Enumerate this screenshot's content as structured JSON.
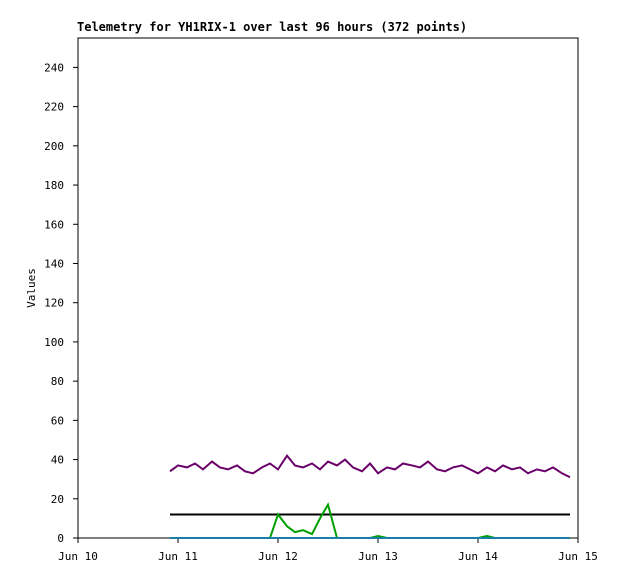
{
  "chart_data": {
    "type": "line",
    "title": "Telemetry for YH1RIX-1 over last 96 hours (372 points)",
    "y_label": "Values",
    "x": [
      10.92,
      11.0,
      11.09,
      11.17,
      11.25,
      11.34,
      11.42,
      11.5,
      11.59,
      11.67,
      11.75,
      11.84,
      11.92,
      12.0,
      12.09,
      12.17,
      12.25,
      12.34,
      12.42,
      12.5,
      12.59,
      12.67,
      12.75,
      12.84,
      12.92,
      13.0,
      13.09,
      13.17,
      13.25,
      13.34,
      13.42,
      13.5,
      13.59,
      13.67,
      13.75,
      13.84,
      13.92,
      14.0,
      14.09,
      14.17,
      14.25,
      14.34,
      14.42,
      14.5,
      14.59,
      14.67,
      14.75,
      14.84,
      14.92
    ],
    "series": [
      {
        "color": "#6a006a",
        "values": [
          34,
          37,
          36,
          38,
          35,
          39,
          36,
          35,
          37,
          34,
          33,
          36,
          38,
          35,
          42,
          37,
          36,
          38,
          35,
          39,
          37,
          40,
          36,
          34,
          38,
          33,
          36,
          35,
          38,
          37,
          36,
          39,
          35,
          34,
          36,
          37,
          35,
          33,
          36,
          34,
          37,
          35,
          36,
          33,
          35,
          34,
          36,
          33,
          31
        ]
      },
      {
        "color": "#000000",
        "values": [
          12,
          12,
          12,
          12,
          12,
          12,
          12,
          12,
          12,
          12,
          12,
          12,
          12,
          12,
          12,
          12,
          12,
          12,
          12,
          12,
          12,
          12,
          12,
          12,
          12,
          12,
          12,
          12,
          12,
          12,
          12,
          12,
          12,
          12,
          12,
          12,
          12,
          12,
          12,
          12,
          12,
          12,
          12,
          12,
          12,
          12,
          12,
          12,
          12
        ]
      },
      {
        "color": "#00a000",
        "values": [
          0,
          0,
          0,
          0,
          0,
          0,
          0,
          0,
          0,
          0,
          0,
          0,
          0,
          12,
          6,
          3,
          4,
          2,
          10,
          17,
          0,
          0,
          0,
          0,
          0,
          1,
          0,
          0,
          0,
          0,
          0,
          0,
          0,
          0,
          0,
          0,
          0,
          0,
          1,
          0,
          0,
          0,
          0,
          0,
          0,
          0,
          0,
          0,
          0
        ]
      },
      {
        "color": "#1a7fa8",
        "values": [
          0,
          0,
          0,
          0,
          0,
          0,
          0,
          0,
          0,
          0,
          0,
          0,
          0,
          0,
          0,
          0,
          0,
          0,
          0,
          0,
          0,
          0,
          0,
          0,
          0,
          0,
          0,
          0,
          0,
          0,
          0,
          0,
          0,
          0,
          0,
          0,
          0,
          0,
          0,
          0,
          0,
          0,
          0,
          0,
          0,
          0,
          0,
          0,
          0
        ]
      }
    ],
    "xlim": [
      10,
      15
    ],
    "xticks": [
      {
        "value": 10,
        "label": "Jun 10"
      },
      {
        "value": 11,
        "label": "Jun 11"
      },
      {
        "value": 12,
        "label": "Jun 12"
      },
      {
        "value": 13,
        "label": "Jun 13"
      },
      {
        "value": 14,
        "label": "Jun 14"
      },
      {
        "value": 15,
        "label": "Jun 15"
      }
    ],
    "ylim": [
      0,
      255
    ],
    "yticks": [
      0,
      20,
      40,
      60,
      80,
      100,
      120,
      140,
      160,
      180,
      200,
      220,
      240
    ],
    "grid": false
  }
}
